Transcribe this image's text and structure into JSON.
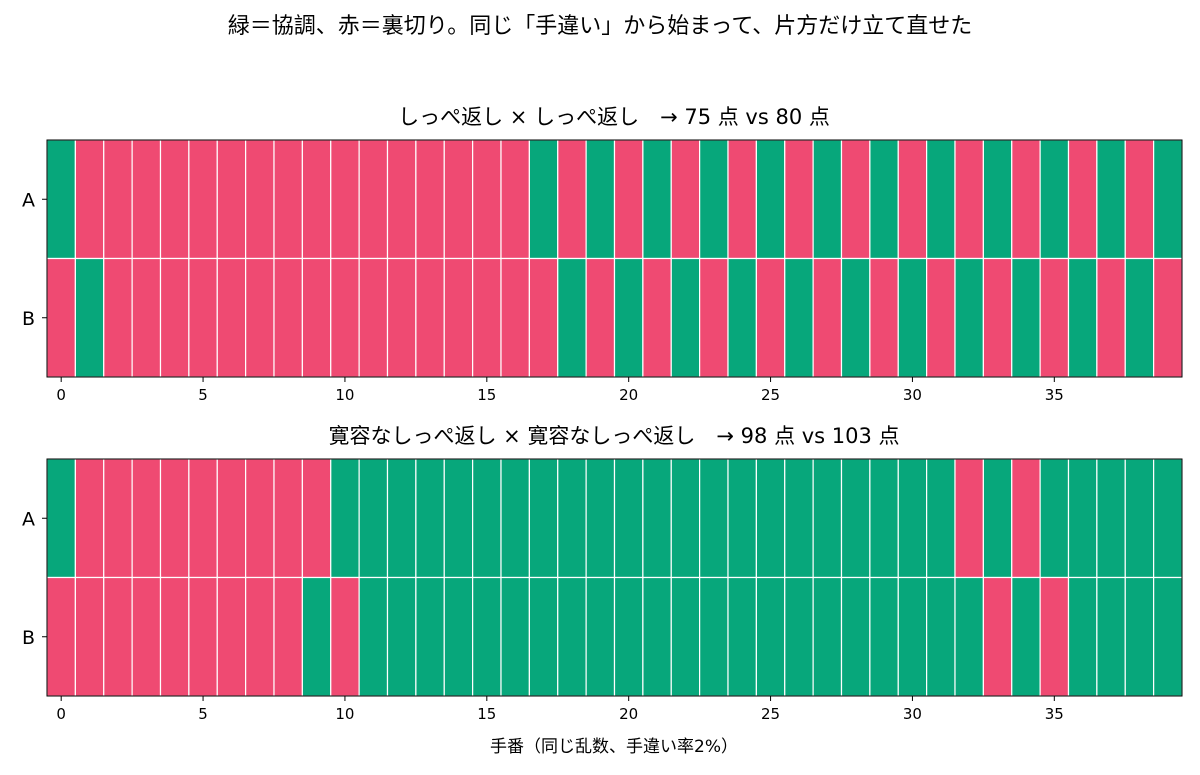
{
  "suptitle": "緑＝協調、赤＝裏切り。同じ「手違い」から始まって、片方だけ立て直せた",
  "xlabel": "手番（同じ乱数、手違い率2%）",
  "colors": {
    "cooperate": "#07a77b",
    "defect": "#ef4a72",
    "cell_border": "#ffffff"
  },
  "chart_data": [
    {
      "type": "heatmap",
      "title": "しっぺ返し × しっぺ返し　→  75 点 vs 80 点",
      "rows": [
        "A",
        "B"
      ],
      "x_range": [
        0,
        39
      ],
      "xticks": [
        0,
        5,
        10,
        15,
        20,
        25,
        30,
        35
      ],
      "legend": {
        "C": "協調",
        "D": "裏切り"
      },
      "moves": {
        "A": "CDDDDDDDDDDDDDDDDCDCDCDCDCDCDCDCDCDCDCDC",
        "B": "DCDDDDDDDDDDDDDDDDCDCDCDCDCDCDCDCDCDCDCD"
      }
    },
    {
      "type": "heatmap",
      "title": "寛容なしっぺ返し × 寛容なしっぺ返し　→  98 点 vs 103 点",
      "rows": [
        "A",
        "B"
      ],
      "x_range": [
        0,
        39
      ],
      "xticks": [
        0,
        5,
        10,
        15,
        20,
        25,
        30,
        35
      ],
      "legend": {
        "C": "協調",
        "D": "裏切り"
      },
      "moves": {
        "A": "CDDDDDDDDDCCCCCCCCCCCCCCCCCCCCCCDCDCCCCC",
        "B": "DDDDDDDDDCDCCCCCCCCCCCCCCCCCCCCCCDCDCCCC"
      }
    }
  ]
}
